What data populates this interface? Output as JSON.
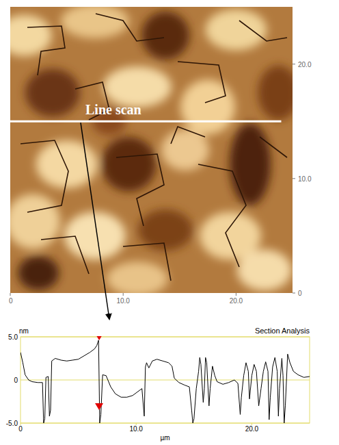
{
  "chart_data": [
    {
      "type": "image",
      "xlim": [
        0,
        25
      ],
      "ylim": [
        0,
        25
      ],
      "xticks": [
        0,
        {
          "value": 10,
          "label": "10.0"
        },
        {
          "value": 20,
          "label": "20.0"
        }
      ],
      "yticks": [
        0,
        {
          "value": 10,
          "label": "10.0"
        },
        {
          "value": 20,
          "label": "20.0"
        }
      ],
      "line_scan": {
        "label": "Line scan",
        "y": 15,
        "x": [
          0,
          24
        ]
      }
    },
    {
      "type": "line",
      "title": "Section Analysis",
      "x_label": "µm",
      "y_label": "nm",
      "xlim": [
        0,
        25
      ],
      "ylim": [
        -5,
        5
      ],
      "xticks": [
        0,
        {
          "value": 10,
          "label": "10.0"
        },
        {
          "value": 20,
          "label": "20.0"
        }
      ],
      "yticks": [
        {
          "value": -5,
          "label": "-5.0"
        },
        0,
        {
          "value": 5,
          "label": "5.0"
        }
      ],
      "grid": true,
      "color": "#000000",
      "x": [
        0,
        0.2,
        0.4,
        0.7,
        1.0,
        1.5,
        1.9,
        2.0,
        2.1,
        2.2,
        2.4,
        2.5,
        2.6,
        2.7,
        3.0,
        3.5,
        4.0,
        4.5,
        5.0,
        5.5,
        6.0,
        6.4,
        6.6,
        6.75,
        6.85,
        6.95,
        7.1,
        7.4,
        7.8,
        8.2,
        8.7,
        9.2,
        9.7,
        10.1,
        10.5,
        10.7,
        10.8,
        10.9,
        11.1,
        11.4,
        11.8,
        12.3,
        12.8,
        13.1,
        13.3,
        13.7,
        14.2,
        14.6,
        14.8,
        14.9,
        15.0,
        15.2,
        15.4,
        15.5,
        15.6,
        15.8,
        15.9,
        16.0,
        16.1,
        16.3,
        16.4,
        16.6,
        16.8,
        17.0,
        17.5,
        18.0,
        18.5,
        18.8,
        19.0,
        19.1,
        19.3,
        19.5,
        19.7,
        19.8,
        20.0,
        20.2,
        20.4,
        20.6,
        20.8,
        21.0,
        21.2,
        21.4,
        21.5,
        21.6,
        21.8,
        22.0,
        22.2,
        22.3,
        22.4,
        22.6,
        22.7,
        22.8,
        22.9,
        23.1,
        23.3,
        23.6,
        24.0,
        24.5,
        25.0
      ],
      "values": [
        3.2,
        2.0,
        0.6,
        0.0,
        -0.2,
        -0.3,
        -0.3,
        -5,
        -4.5,
        0.3,
        0.4,
        -4.2,
        -3.5,
        2.2,
        2.5,
        2.3,
        2.2,
        2.3,
        2.4,
        2.8,
        3.2,
        3.6,
        4.0,
        4.6,
        -5,
        -4,
        0.6,
        0.5,
        -0.8,
        -1.6,
        -2.0,
        -2.0,
        -1.8,
        -1.4,
        -1.0,
        -4.2,
        1.5,
        2.0,
        1.4,
        2.2,
        2.4,
        2.2,
        2.0,
        1.6,
        0.2,
        -0.3,
        -0.6,
        -0.8,
        -3.5,
        -5,
        -4.5,
        -1.0,
        1.0,
        2.6,
        1.8,
        -2.6,
        -1,
        2.6,
        2.0,
        -3.0,
        -1.0,
        1.6,
        0.5,
        -0.2,
        -0.5,
        -0.3,
        0,
        -0.4,
        -4.0,
        -2,
        0.5,
        2.0,
        1.0,
        -2.2,
        0.5,
        1.8,
        1.0,
        -3.0,
        -1.0,
        1.0,
        2.1,
        1.0,
        -4.6,
        -2,
        1.5,
        2.6,
        1.0,
        -4.2,
        -1,
        2.5,
        0.5,
        -5,
        -3,
        3.0,
        2.0,
        1.0,
        0.6,
        0.3,
        0.4
      ],
      "cursors": {
        "x": [
          6.8,
          6.8
        ],
        "values": [
          4.6,
          -3.5
        ],
        "color": "#e00000"
      }
    }
  ]
}
